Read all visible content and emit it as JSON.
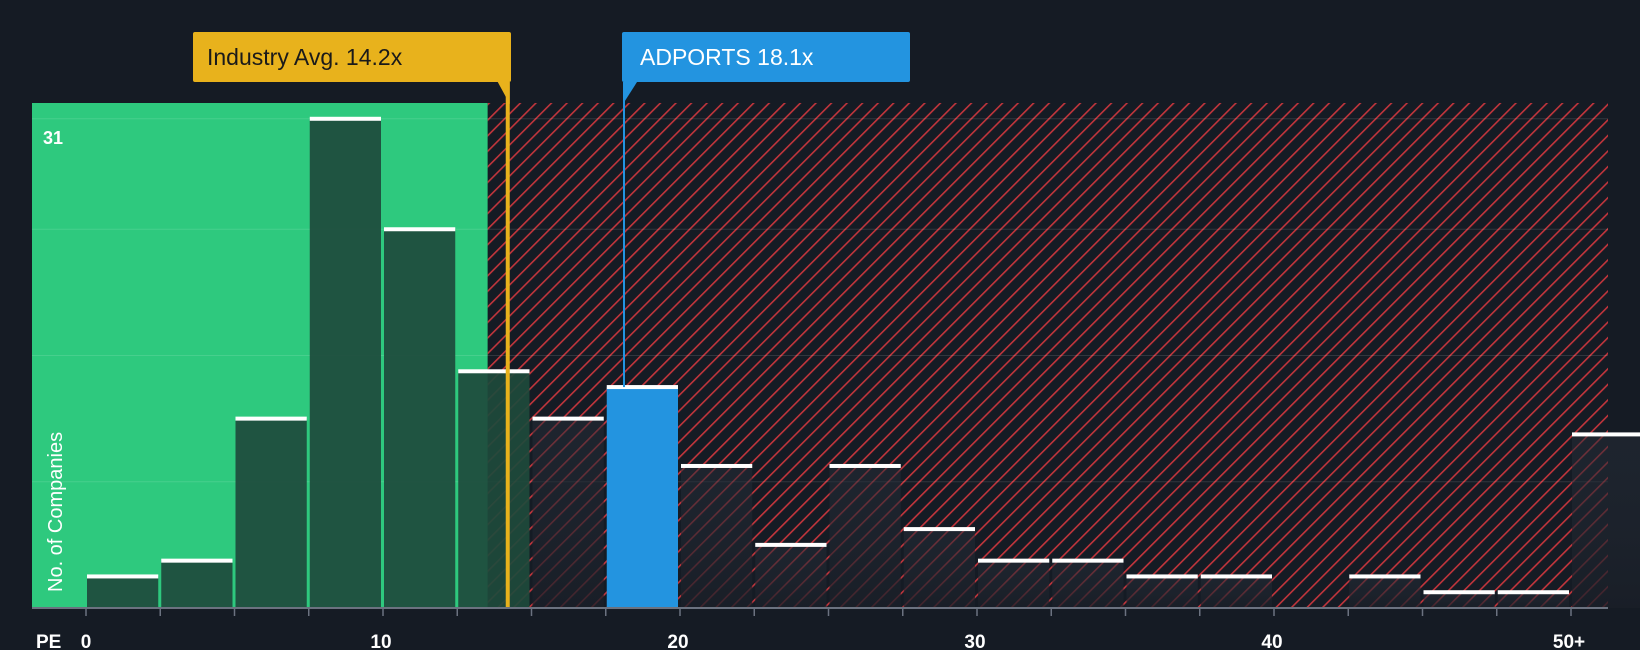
{
  "chart_data": {
    "type": "bar",
    "title": "",
    "xlabel": "PE",
    "ylabel": "No. of Companies",
    "x_ticks": [
      "0",
      "10",
      "20",
      "30",
      "40",
      "50+"
    ],
    "y_top_label": "31",
    "ylim": [
      0,
      32
    ],
    "bins": [
      {
        "start": 0,
        "end": 2.5,
        "count": 2
      },
      {
        "start": 2.5,
        "end": 5,
        "count": 3
      },
      {
        "start": 5,
        "end": 7.5,
        "count": 12
      },
      {
        "start": 7.5,
        "end": 10,
        "count": 31
      },
      {
        "start": 10,
        "end": 12.5,
        "count": 24
      },
      {
        "start": 12.5,
        "end": 15,
        "count": 15
      },
      {
        "start": 15,
        "end": 17.5,
        "count": 12
      },
      {
        "start": 17.5,
        "end": 20,
        "count": 14
      },
      {
        "start": 20,
        "end": 22.5,
        "count": 9
      },
      {
        "start": 22.5,
        "end": 25,
        "count": 4
      },
      {
        "start": 25,
        "end": 27.5,
        "count": 9
      },
      {
        "start": 27.5,
        "end": 30,
        "count": 5
      },
      {
        "start": 30,
        "end": 32.5,
        "count": 3
      },
      {
        "start": 32.5,
        "end": 35,
        "count": 3
      },
      {
        "start": 35,
        "end": 37.5,
        "count": 2
      },
      {
        "start": 37.5,
        "end": 40,
        "count": 2
      },
      {
        "start": 40,
        "end": 42.5,
        "count": 0
      },
      {
        "start": 42.5,
        "end": 45,
        "count": 2
      },
      {
        "start": 45,
        "end": 47.5,
        "count": 1
      },
      {
        "start": 47.5,
        "end": 50,
        "count": 1
      },
      {
        "start": 50,
        "end": 52.5,
        "count": 11
      }
    ],
    "industry_avg": {
      "label": "Industry Avg. 14.2x",
      "value": 14.2
    },
    "company": {
      "label": "ADPORTS 18.1x",
      "value": 18.1,
      "bin_start": 17.5
    },
    "colors": {
      "background": "#151b24",
      "fair_zone": "#2ec97e",
      "overvalued_hatch": "#c2353c",
      "bar_dark": "#1e4a3c",
      "bar_hatched": "#1d232d",
      "company_bar": "#2394e0",
      "industry_line": "#e8b21c",
      "bar_cap": "#ffffff"
    }
  }
}
